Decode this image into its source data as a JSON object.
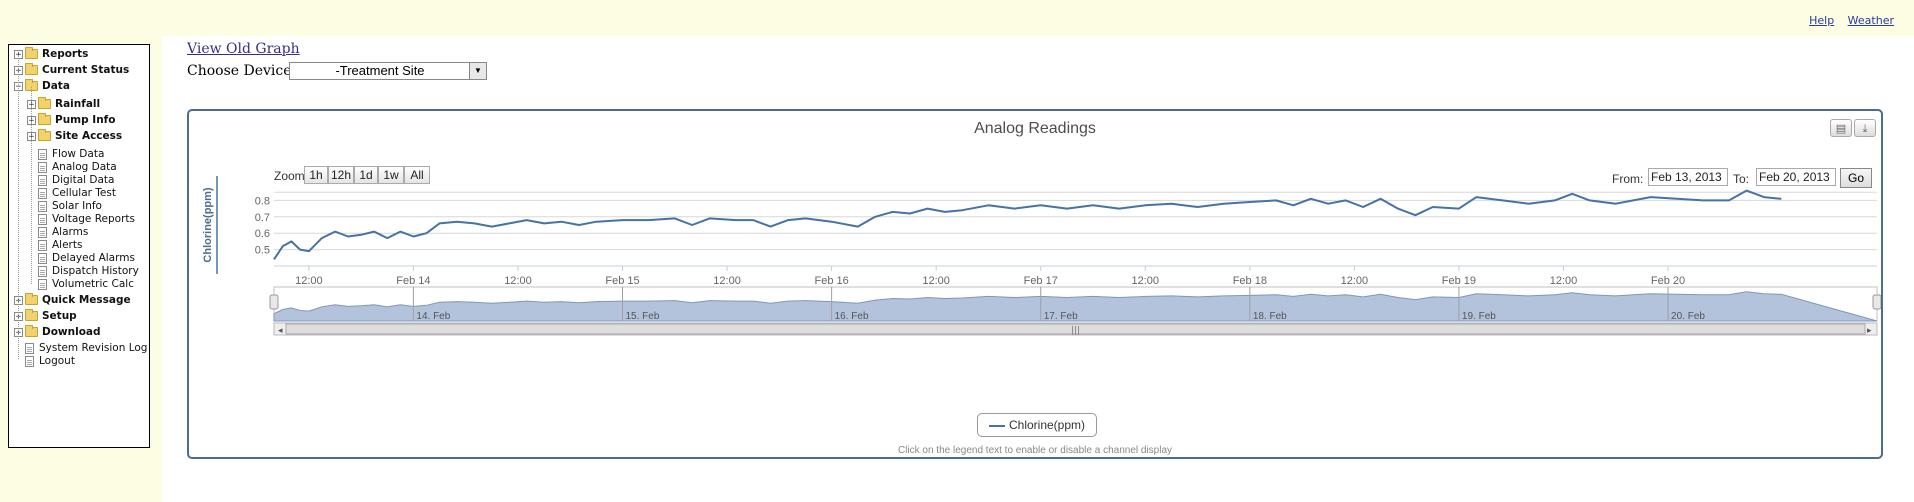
{
  "top_links": {
    "help": "Help",
    "weather": "Weather"
  },
  "tree": [
    {
      "label": "Reports",
      "type": "folder",
      "expander": "+",
      "level": 0,
      "bold": true
    },
    {
      "label": "Current Status",
      "type": "folder",
      "expander": "+",
      "level": 0,
      "bold": true
    },
    {
      "label": "Data",
      "type": "folder-open",
      "expander": "−",
      "level": 0,
      "bold": true
    },
    {
      "label": "Rainfall",
      "type": "folder",
      "expander": "+",
      "level": 1,
      "bold": true
    },
    {
      "label": "Pump Info",
      "type": "folder",
      "expander": "+",
      "level": 1,
      "bold": true
    },
    {
      "label": "Site Access",
      "type": "folder",
      "expander": "+",
      "level": 1,
      "bold": true
    },
    {
      "label": "Flow Data",
      "type": "page",
      "level": 1
    },
    {
      "label": "Analog Data",
      "type": "page",
      "level": 1
    },
    {
      "label": "Digital Data",
      "type": "page",
      "level": 1
    },
    {
      "label": "Cellular Test",
      "type": "page",
      "level": 1
    },
    {
      "label": "Solar Info",
      "type": "page",
      "level": 1
    },
    {
      "label": "Voltage Reports",
      "type": "page",
      "level": 1
    },
    {
      "label": "Alarms",
      "type": "page",
      "level": 1
    },
    {
      "label": "Alerts",
      "type": "page",
      "level": 1
    },
    {
      "label": "Delayed Alarms",
      "type": "page",
      "level": 1
    },
    {
      "label": "Dispatch History",
      "type": "page",
      "level": 1
    },
    {
      "label": "Volumetric Calc",
      "type": "page",
      "level": 1
    },
    {
      "label": "Quick Message",
      "type": "folder",
      "expander": "+",
      "level": 0,
      "bold": true
    },
    {
      "label": "Setup",
      "type": "folder",
      "expander": "+",
      "level": 0,
      "bold": true
    },
    {
      "label": "Download",
      "type": "folder",
      "expander": "+",
      "level": 0,
      "bold": true
    },
    {
      "label": "System Revision Log",
      "type": "page",
      "level": 0
    },
    {
      "label": "Logout",
      "type": "page",
      "level": 0
    }
  ],
  "header": {
    "view_old_graph": "View Old Graph",
    "choose_device_label": "Choose Device:",
    "device_selected": "-Treatment Site"
  },
  "chart_panel": {
    "title": "Analog Readings",
    "print_icon": "printer-icon",
    "export_icon": "download-icon",
    "zoom_label": "Zoom",
    "zoom_buttons": [
      "1h",
      "12h",
      "1d",
      "1w",
      "All"
    ],
    "from_label": "From:",
    "to_label": "To:",
    "from_value": "Feb 13, 2013",
    "to_value": "Feb 20, 2013",
    "go_label": "Go",
    "legend_label": "Chlorine(ppm)",
    "hint": "Click on the legend text to enable or disable a channel display"
  },
  "colors": {
    "series": "#4572a7",
    "navigator_fill": "#b4c3dc",
    "panel_border": "#4d6d8f",
    "page_band": "#fdfde4"
  },
  "chart_data": {
    "type": "line",
    "title": "Analog Readings",
    "ylabel": "Chlorine(ppm)",
    "ylim": [
      0.4,
      0.9
    ],
    "yticks": [
      0.5,
      0.6,
      0.7,
      0.8
    ],
    "xlim": [
      "2013-02-13T08:00",
      "2013-02-20T23:59"
    ],
    "x_tick_labels": [
      "12:00",
      "Feb 14",
      "12:00",
      "Feb 15",
      "12:00",
      "Feb 16",
      "12:00",
      "Feb 17",
      "12:00",
      "Feb 18",
      "12:00",
      "Feb 19",
      "12:00",
      "Feb 20"
    ],
    "navigator_labels": [
      "14. Feb",
      "15. Feb",
      "16. Feb",
      "17. Feb",
      "18. Feb",
      "19. Feb",
      "20. Feb"
    ],
    "series": [
      {
        "name": "Chlorine(ppm)",
        "points": [
          [
            "2013-02-13T08:00",
            0.44
          ],
          [
            "2013-02-13T09:00",
            0.52
          ],
          [
            "2013-02-13T10:00",
            0.55
          ],
          [
            "2013-02-13T11:00",
            0.5
          ],
          [
            "2013-02-13T12:00",
            0.49
          ],
          [
            "2013-02-13T13:30",
            0.57
          ],
          [
            "2013-02-13T15:00",
            0.61
          ],
          [
            "2013-02-13T16:30",
            0.58
          ],
          [
            "2013-02-13T18:00",
            0.59
          ],
          [
            "2013-02-13T19:30",
            0.61
          ],
          [
            "2013-02-13T21:00",
            0.57
          ],
          [
            "2013-02-13T22:30",
            0.61
          ],
          [
            "2013-02-14T00:00",
            0.58
          ],
          [
            "2013-02-14T01:30",
            0.6
          ],
          [
            "2013-02-14T03:00",
            0.66
          ],
          [
            "2013-02-14T05:00",
            0.67
          ],
          [
            "2013-02-14T07:00",
            0.66
          ],
          [
            "2013-02-14T09:00",
            0.64
          ],
          [
            "2013-02-14T11:00",
            0.66
          ],
          [
            "2013-02-14T13:00",
            0.68
          ],
          [
            "2013-02-14T15:00",
            0.66
          ],
          [
            "2013-02-14T17:00",
            0.67
          ],
          [
            "2013-02-14T19:00",
            0.65
          ],
          [
            "2013-02-14T21:00",
            0.67
          ],
          [
            "2013-02-15T00:00",
            0.68
          ],
          [
            "2013-02-15T03:00",
            0.68
          ],
          [
            "2013-02-15T06:00",
            0.69
          ],
          [
            "2013-02-15T08:00",
            0.65
          ],
          [
            "2013-02-15T10:00",
            0.69
          ],
          [
            "2013-02-15T13:00",
            0.68
          ],
          [
            "2013-02-15T15:00",
            0.68
          ],
          [
            "2013-02-15T17:00",
            0.64
          ],
          [
            "2013-02-15T19:00",
            0.68
          ],
          [
            "2013-02-15T21:00",
            0.69
          ],
          [
            "2013-02-16T00:00",
            0.67
          ],
          [
            "2013-02-16T03:00",
            0.64
          ],
          [
            "2013-02-16T05:00",
            0.7
          ],
          [
            "2013-02-16T07:00",
            0.73
          ],
          [
            "2013-02-16T09:00",
            0.72
          ],
          [
            "2013-02-16T11:00",
            0.75
          ],
          [
            "2013-02-16T13:00",
            0.73
          ],
          [
            "2013-02-16T15:00",
            0.74
          ],
          [
            "2013-02-16T18:00",
            0.77
          ],
          [
            "2013-02-16T21:00",
            0.75
          ],
          [
            "2013-02-17T00:00",
            0.77
          ],
          [
            "2013-02-17T03:00",
            0.75
          ],
          [
            "2013-02-17T06:00",
            0.77
          ],
          [
            "2013-02-17T09:00",
            0.75
          ],
          [
            "2013-02-17T12:00",
            0.77
          ],
          [
            "2013-02-17T15:00",
            0.78
          ],
          [
            "2013-02-17T18:00",
            0.76
          ],
          [
            "2013-02-17T21:00",
            0.78
          ],
          [
            "2013-02-18T00:00",
            0.79
          ],
          [
            "2013-02-18T03:00",
            0.8
          ],
          [
            "2013-02-18T05:00",
            0.77
          ],
          [
            "2013-02-18T07:00",
            0.81
          ],
          [
            "2013-02-18T09:00",
            0.78
          ],
          [
            "2013-02-18T11:00",
            0.8
          ],
          [
            "2013-02-18T13:00",
            0.76
          ],
          [
            "2013-02-18T15:00",
            0.81
          ],
          [
            "2013-02-18T17:00",
            0.75
          ],
          [
            "2013-02-18T19:00",
            0.71
          ],
          [
            "2013-02-18T21:00",
            0.76
          ],
          [
            "2013-02-19T00:00",
            0.75
          ],
          [
            "2013-02-19T02:00",
            0.82
          ],
          [
            "2013-02-19T05:00",
            0.8
          ],
          [
            "2013-02-19T08:00",
            0.78
          ],
          [
            "2013-02-19T11:00",
            0.8
          ],
          [
            "2013-02-19T13:00",
            0.84
          ],
          [
            "2013-02-19T15:00",
            0.8
          ],
          [
            "2013-02-19T18:00",
            0.78
          ],
          [
            "2013-02-19T20:00",
            0.8
          ],
          [
            "2013-02-19T22:00",
            0.82
          ],
          [
            "2013-02-20T01:00",
            0.81
          ],
          [
            "2013-02-20T04:00",
            0.8
          ],
          [
            "2013-02-20T07:00",
            0.8
          ],
          [
            "2013-02-20T09:00",
            0.86
          ],
          [
            "2013-02-20T11:00",
            0.82
          ],
          [
            "2013-02-20T13:00",
            0.81
          ]
        ]
      }
    ]
  }
}
